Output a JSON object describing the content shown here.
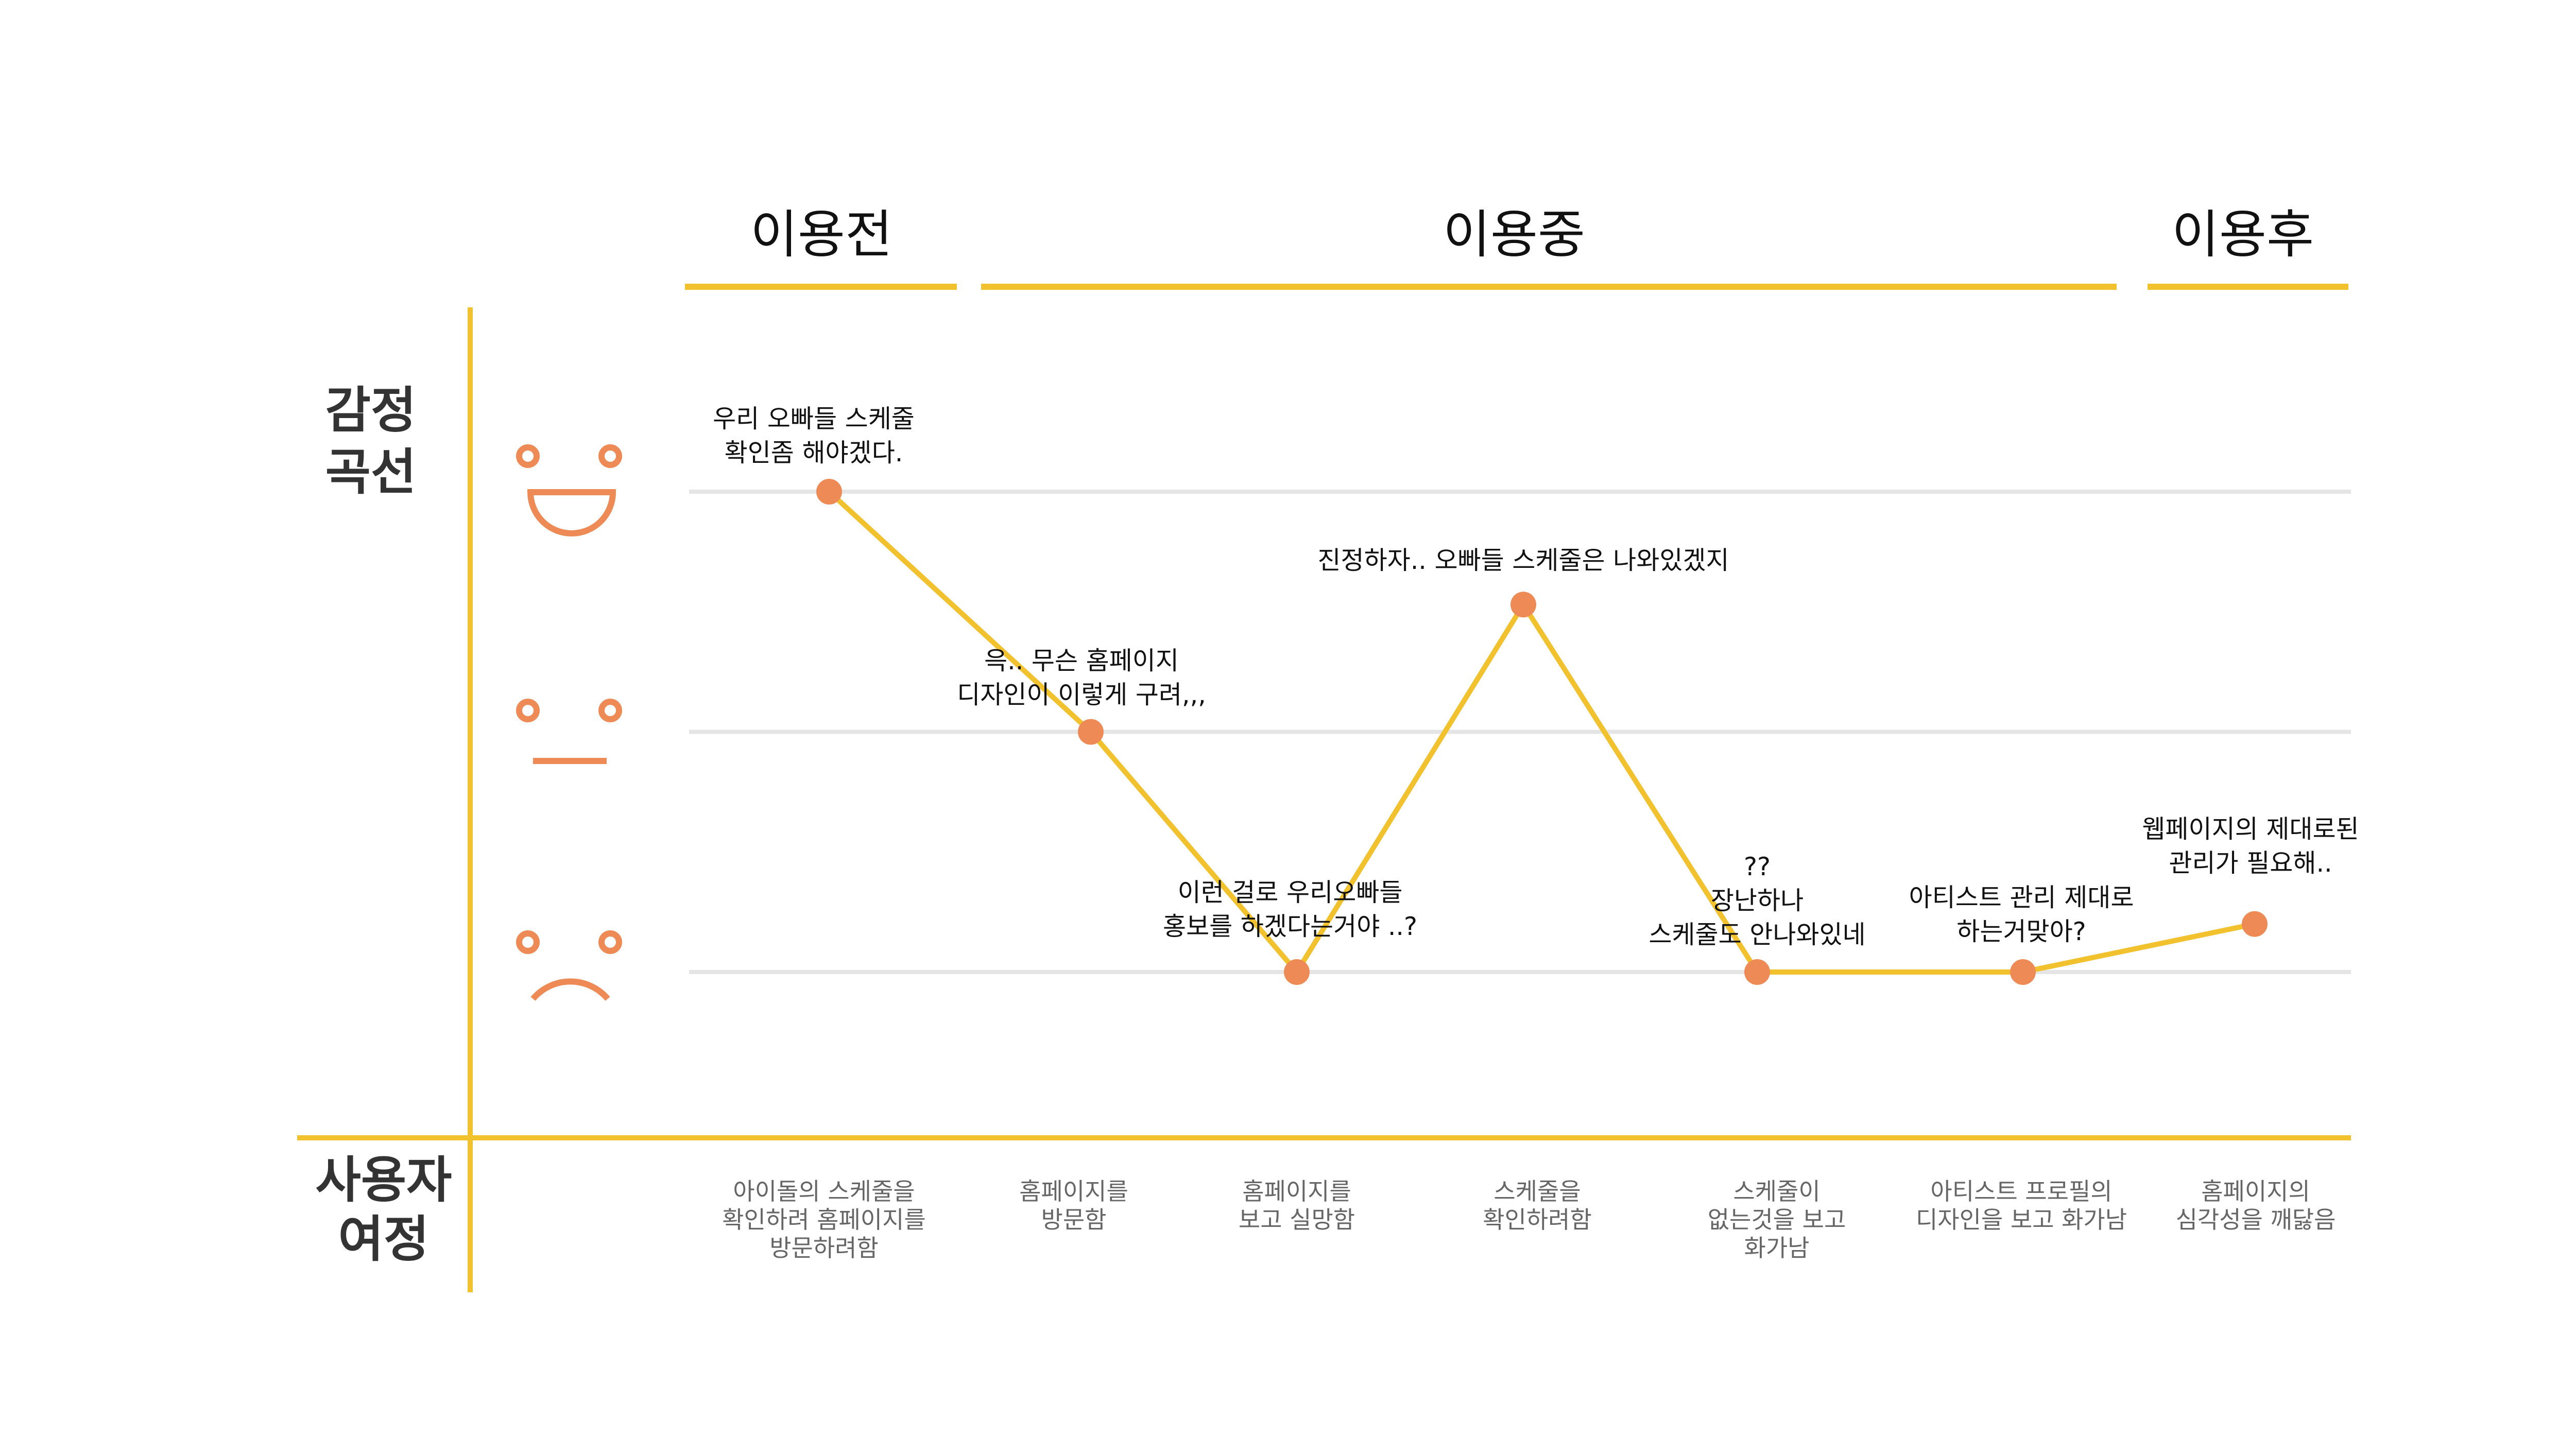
{
  "colors": {
    "accent": "#F2C12E",
    "marker": "#EE8A55",
    "gridline": "#E5E5E5",
    "text": "#111111",
    "muted_text": "#666666",
    "row_label": "#333333"
  },
  "phases": [
    {
      "label": "이용전"
    },
    {
      "label": "이용중"
    },
    {
      "label": "이용후"
    }
  ],
  "row_labels": {
    "emotion": [
      "감정",
      "곡선"
    ],
    "journey": [
      "사용자",
      "여정"
    ]
  },
  "emotion_icons": [
    {
      "name": "happy-face-icon",
      "level": "positive"
    },
    {
      "name": "neutral-face-icon",
      "level": "neutral"
    },
    {
      "name": "sad-face-icon",
      "level": "negative"
    }
  ],
  "chart_data": {
    "type": "line",
    "y_levels": [
      "positive",
      "neutral",
      "negative"
    ],
    "ylim": [
      -1,
      1
    ],
    "points": [
      {
        "step": 1,
        "phase": "이용전",
        "value": 1.0,
        "comment": [
          "우리 오빠들 스케줄",
          "확인좀 해야겠다."
        ]
      },
      {
        "step": 2,
        "phase": "이용중",
        "value": 0.0,
        "comment": [
          "윽.. 무슨 홈페이지",
          "디자인이 이렇게 구려,,,"
        ]
      },
      {
        "step": 3,
        "phase": "이용중",
        "value": -1.0,
        "comment": [
          "이런 걸로 우리오빠들",
          "홍보를 하겠다는거야 ..?"
        ]
      },
      {
        "step": 4,
        "phase": "이용중",
        "value": 0.53,
        "comment": [
          "진정하자.. 오빠들 스케줄은 나와있겠지"
        ]
      },
      {
        "step": 5,
        "phase": "이용중",
        "value": -1.0,
        "comment": [
          "??",
          "장난하나",
          "스케줄도 안나와있네"
        ]
      },
      {
        "step": 6,
        "phase": "이용중",
        "value": -1.0,
        "comment": [
          "아티스트 관리 제대로",
          "하는거맞아?"
        ]
      },
      {
        "step": 7,
        "phase": "이용후",
        "value": -0.8,
        "comment": [
          "웹페이지의 제대로된",
          "관리가 필요해.."
        ]
      }
    ],
    "steps": [
      [
        "아이돌의 스케줄을",
        "확인하려 홈페이지를",
        "방문하려함"
      ],
      [
        "홈페이지를",
        "방문함"
      ],
      [
        "홈페이지를",
        "보고 실망함"
      ],
      [
        "스케줄을",
        "확인하려함"
      ],
      [
        "스케줄이",
        "없는것을 보고",
        "화가남"
      ],
      [
        "아티스트 프로필의",
        "디자인을 보고 화가남"
      ],
      [
        "홈페이지의",
        "심각성을 깨닳음"
      ]
    ]
  }
}
